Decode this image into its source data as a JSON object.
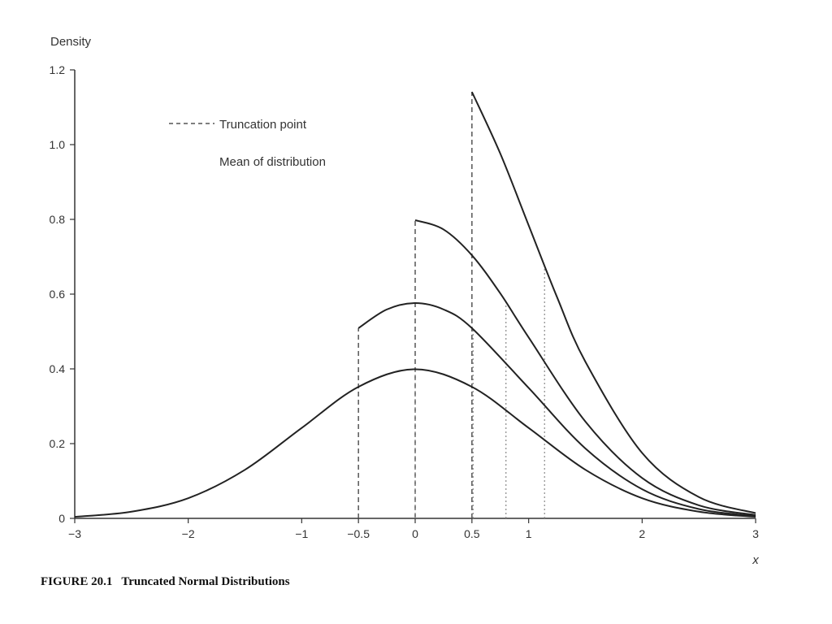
{
  "caption": "FIGURE 20.1   Truncated Normal Distributions",
  "chart_data": {
    "type": "line",
    "title": "",
    "xlabel": "x",
    "ylabel": "Density",
    "xlim": [
      -3,
      3
    ],
    "ylim": [
      0,
      1.2
    ],
    "x_ticks": [
      {
        "value": -3,
        "label": "−3"
      },
      {
        "value": -2,
        "label": "−2"
      },
      {
        "value": -1,
        "label": "−1"
      },
      {
        "value": -0.5,
        "label": "−0.5"
      },
      {
        "value": 0,
        "label": "0"
      },
      {
        "value": 0.5,
        "label": "0.5"
      },
      {
        "value": 1,
        "label": "1"
      },
      {
        "value": 2,
        "label": "2"
      },
      {
        "value": 3,
        "label": "3"
      }
    ],
    "y_ticks": [
      {
        "value": 0,
        "label": "0"
      },
      {
        "value": 0.2,
        "label": "0.2"
      },
      {
        "value": 0.4,
        "label": "0.4"
      },
      {
        "value": 0.6,
        "label": "0.6"
      },
      {
        "value": 0.8,
        "label": "0.8"
      },
      {
        "value": 1.0,
        "label": "1.0"
      },
      {
        "value": 1.2,
        "label": "1.2"
      }
    ],
    "legend": [
      {
        "label": "Truncation point",
        "style": "dashed"
      },
      {
        "label": "Mean of distribution",
        "style": "dotted"
      }
    ],
    "legend_position": "top-left",
    "series": [
      {
        "truncation": null,
        "mean": 0,
        "x": [
          -3,
          -2.5,
          -2,
          -1.5,
          -1,
          -0.5,
          0,
          0.5,
          1,
          1.5,
          2,
          2.5,
          3
        ],
        "y": [
          0.004,
          0.018,
          0.054,
          0.13,
          0.242,
          0.352,
          0.399,
          0.352,
          0.242,
          0.13,
          0.054,
          0.018,
          0.004
        ]
      },
      {
        "truncation": -0.5,
        "mean": 0.51,
        "x": [
          -0.5,
          -0.25,
          0,
          0.25,
          0.5,
          1,
          1.5,
          2,
          2.5,
          3
        ],
        "y": [
          0.509,
          0.559,
          0.576,
          0.559,
          0.509,
          0.349,
          0.187,
          0.078,
          0.025,
          0.006
        ]
      },
      {
        "truncation": 0,
        "mean": 0.8,
        "x": [
          0,
          0.25,
          0.5,
          0.75,
          1,
          1.5,
          2,
          2.5,
          3
        ],
        "y": [
          0.798,
          0.773,
          0.704,
          0.602,
          0.484,
          0.259,
          0.108,
          0.035,
          0.009
        ]
      },
      {
        "truncation": 0.5,
        "mean": 1.14,
        "x": [
          0.5,
          0.75,
          1,
          1.25,
          1.5,
          2,
          2.5,
          3
        ],
        "y": [
          1.141,
          0.976,
          0.784,
          0.592,
          0.419,
          0.175,
          0.057,
          0.014
        ]
      }
    ]
  }
}
